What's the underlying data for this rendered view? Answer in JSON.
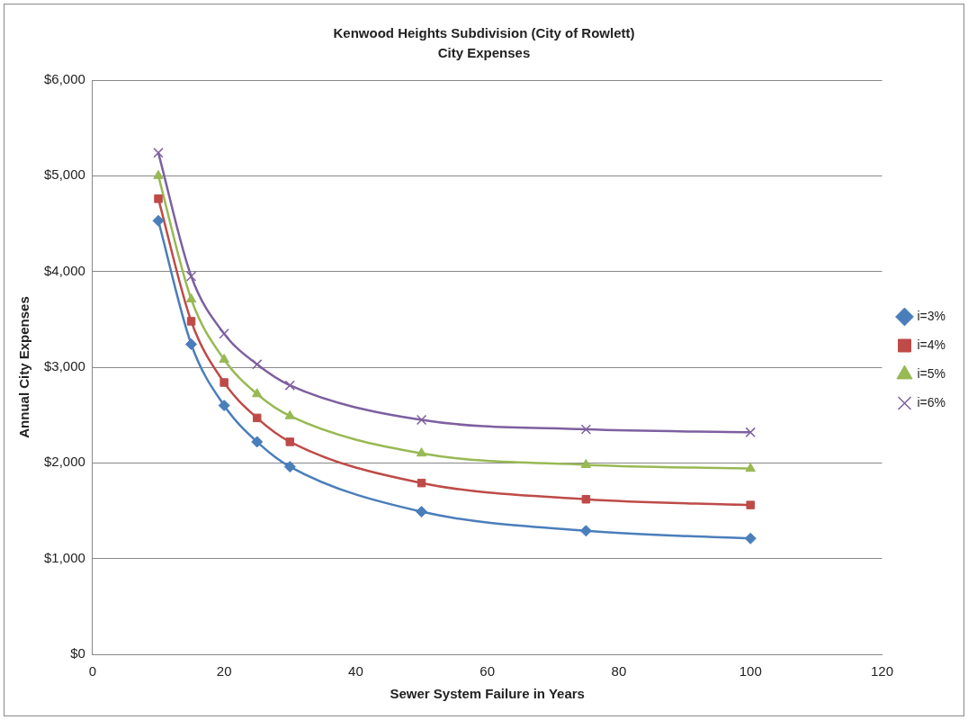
{
  "chart_data": {
    "type": "line",
    "title": "Kenwood Heights Subdivision (City of Rowlett)",
    "subtitle": "City Expenses",
    "xlabel": "Sewer System Failure in Years",
    "ylabel": "Annual City Expenses",
    "x": [
      10,
      15,
      20,
      25,
      30,
      50,
      75,
      100
    ],
    "series": [
      {
        "name": "i=3%",
        "color": "#4a7ebb",
        "marker": "diamond",
        "values": [
          4530,
          3240,
          2600,
          2220,
          1960,
          1490,
          1290,
          1210
        ]
      },
      {
        "name": "i=4%",
        "color": "#be4b48",
        "marker": "square",
        "values": [
          4760,
          3480,
          2840,
          2470,
          2220,
          1790,
          1620,
          1560
        ]
      },
      {
        "name": "i=5%",
        "color": "#98b954",
        "marker": "triangle",
        "values": [
          5000,
          3710,
          3080,
          2720,
          2490,
          2100,
          1980,
          1940
        ]
      },
      {
        "name": "i=6%",
        "color": "#7d60a0",
        "marker": "cross",
        "values": [
          5240,
          3950,
          3350,
          3030,
          2810,
          2450,
          2350,
          2320
        ]
      }
    ],
    "xlim": [
      0,
      120
    ],
    "xticks": [
      0,
      20,
      40,
      60,
      80,
      100,
      120
    ],
    "ylim": [
      0,
      6000
    ],
    "yticks": [
      {
        "value": 0,
        "label": "$0"
      },
      {
        "value": 1000,
        "label": "$1,000"
      },
      {
        "value": 2000,
        "label": "$2,000"
      },
      {
        "value": 3000,
        "label": "$3,000"
      },
      {
        "value": 4000,
        "label": "$4,000"
      },
      {
        "value": 5000,
        "label": "$5,000"
      },
      {
        "value": 6000,
        "label": "$6,000"
      }
    ],
    "grid": "y",
    "legend": "right",
    "line_style": "solid"
  }
}
